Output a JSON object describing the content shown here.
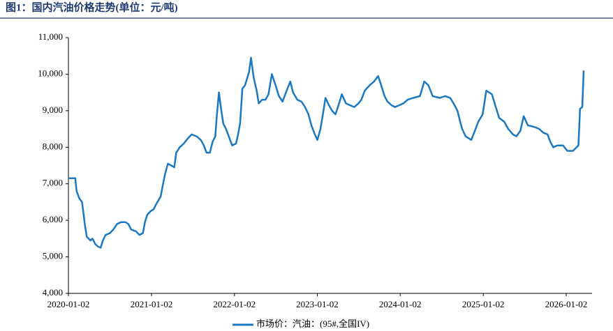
{
  "chart_data": {
    "type": "line",
    "title": "图1：国内汽油价格走势(单位：元/吨)",
    "x": [
      "2020-01-02",
      "2020-02-01",
      "2020-02-07",
      "2020-02-19",
      "2020-03-02",
      "2020-03-08",
      "2020-03-14",
      "2020-03-23",
      "2020-04-08",
      "2020-04-17",
      "2020-04-29",
      "2020-05-11",
      "2020-05-23",
      "2020-06-02",
      "2020-06-14",
      "2020-07-03",
      "2020-07-18",
      "2020-08-03",
      "2020-08-21",
      "2020-09-09",
      "2020-09-22",
      "2020-10-04",
      "2020-10-25",
      "2020-11-10",
      "2020-11-25",
      "2020-12-04",
      "2020-12-14",
      "2020-12-29",
      "2021-01-11",
      "2021-01-23",
      "2021-02-11",
      "2021-02-22",
      "2021-03-02",
      "2021-03-15",
      "2021-03-30",
      "2021-04-12",
      "2021-04-21",
      "2021-05-06",
      "2021-05-24",
      "2021-06-12",
      "2021-06-28",
      "2021-07-19",
      "2021-08-07",
      "2021-08-20",
      "2021-09-01",
      "2021-09-16",
      "2021-09-28",
      "2021-10-10",
      "2021-10-17",
      "2021-10-26",
      "2021-11-04",
      "2021-11-14",
      "2021-11-26",
      "2021-12-08",
      "2021-12-23",
      "2022-01-09",
      "2022-01-18",
      "2022-01-27",
      "2022-02-06",
      "2022-02-18",
      "2022-03-07",
      "2022-03-16",
      "2022-03-28",
      "2022-04-10",
      "2022-04-19",
      "2022-05-04",
      "2022-05-19",
      "2022-06-01",
      "2022-06-16",
      "2022-07-02",
      "2022-07-17",
      "2022-08-02",
      "2022-08-17",
      "2022-09-05",
      "2022-09-17",
      "2022-10-06",
      "2022-10-24",
      "2022-11-09",
      "2022-11-24",
      "2022-12-07",
      "2022-12-19",
      "2023-01-02",
      "2023-01-16",
      "2023-01-28",
      "2023-02-07",
      "2023-02-22",
      "2023-03-08",
      "2023-03-23",
      "2023-04-08",
      "2023-04-20",
      "2023-05-08",
      "2023-05-26",
      "2023-06-14",
      "2023-07-02",
      "2023-07-15",
      "2023-07-30",
      "2023-08-21",
      "2023-09-09",
      "2023-09-27",
      "2023-10-10",
      "2023-10-25",
      "2023-11-07",
      "2023-11-25",
      "2023-12-10",
      "2023-12-29",
      "2024-01-16",
      "2024-02-04",
      "2024-02-28",
      "2024-03-29",
      "2024-04-17",
      "2024-05-05",
      "2024-05-24",
      "2024-06-24",
      "2024-07-18",
      "2024-08-09",
      "2024-08-24",
      "2024-09-10",
      "2024-09-22",
      "2024-10-01",
      "2024-10-16",
      "2024-11-10",
      "2024-11-26",
      "2024-12-11",
      "2024-12-30",
      "2025-01-15",
      "2025-02-09",
      "2025-02-26",
      "2025-03-13",
      "2025-04-04",
      "2025-04-22",
      "2025-05-13",
      "2025-05-28",
      "2025-06-14",
      "2025-06-29",
      "2025-07-17",
      "2025-08-17",
      "2025-09-05",
      "2025-09-23",
      "2025-10-12",
      "2025-10-24",
      "2025-11-06",
      "2025-11-24",
      "2025-12-19",
      "2026-01-07",
      "2026-02-01",
      "2026-02-25",
      "2026-03-04",
      "2026-03-14",
      "2026-03-20"
    ],
    "series": [
      {
        "name": "市场价：汽油：(95#,全国IV)",
        "color": "#1a78c2",
        "values": [
          7150,
          7150,
          6800,
          6600,
          6500,
          6200,
          5900,
          5550,
          5450,
          5500,
          5350,
          5280,
          5250,
          5450,
          5600,
          5650,
          5750,
          5900,
          5950,
          5950,
          5900,
          5750,
          5700,
          5600,
          5650,
          5950,
          6150,
          6250,
          6300,
          6450,
          6650,
          7000,
          7250,
          7550,
          7500,
          7450,
          7850,
          8000,
          8100,
          8250,
          8350,
          8300,
          8200,
          8050,
          7850,
          7850,
          8150,
          8300,
          8900,
          9500,
          9050,
          8650,
          8500,
          8300,
          8050,
          8100,
          8350,
          8650,
          9600,
          9700,
          10050,
          10450,
          9900,
          9550,
          9200,
          9300,
          9300,
          9450,
          10000,
          9700,
          9400,
          9250,
          9500,
          9800,
          9500,
          9300,
          9250,
          9100,
          8900,
          8600,
          8400,
          8200,
          8500,
          8950,
          9350,
          9150,
          9000,
          8900,
          9200,
          9450,
          9200,
          9150,
          9100,
          9200,
          9300,
          9550,
          9700,
          9800,
          9950,
          9700,
          9400,
          9250,
          9150,
          9100,
          9150,
          9200,
          9300,
          9350,
          9400,
          9800,
          9700,
          9400,
          9350,
          9400,
          9350,
          9200,
          9000,
          8700,
          8500,
          8300,
          8200,
          8450,
          8700,
          8900,
          9550,
          9450,
          9100,
          8800,
          8700,
          8500,
          8350,
          8300,
          8450,
          8850,
          8600,
          8550,
          8500,
          8400,
          8350,
          8150,
          8000,
          8050,
          8050,
          7900,
          7900,
          8050,
          9050,
          9100,
          10100
        ]
      }
    ],
    "xlim": [
      "2020-01-02",
      "2026-03-20"
    ],
    "xticks": [
      "2020-01-02",
      "2021-01-02",
      "2022-01-02",
      "2023-01-02",
      "2024-01-02",
      "2025-01-02",
      "2026-01-02"
    ],
    "ylim": [
      4000,
      11000
    ],
    "yticks": [
      {
        "value": 4000,
        "label": "4,000"
      },
      {
        "value": 5000,
        "label": "5,000"
      },
      {
        "value": 6000,
        "label": "6,000"
      },
      {
        "value": 7000,
        "label": "7,000"
      },
      {
        "value": 8000,
        "label": "8,000"
      },
      {
        "value": 9000,
        "label": "9,000"
      },
      {
        "value": 10000,
        "label": "10,000"
      },
      {
        "value": 11000,
        "label": "11,000"
      }
    ],
    "grid": false,
    "legend": "bottom"
  }
}
